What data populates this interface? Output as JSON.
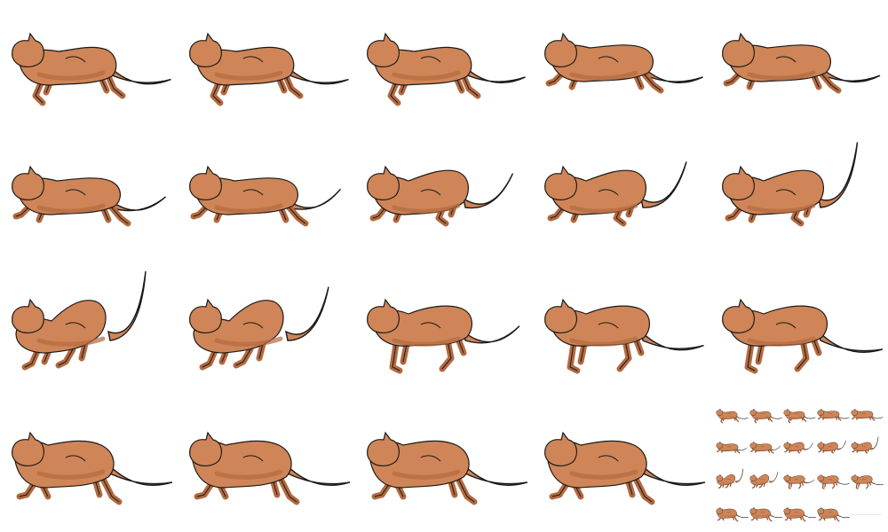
{
  "sprite_sheet": {
    "columns": 5,
    "rows": 4,
    "frame_count": 19,
    "colors": {
      "fur": "#cf8557",
      "fur_shadow": "#b46a40",
      "outline": "#1a1a1a",
      "background": "#ffffff"
    },
    "frames": [
      {
        "pose": "extended-low",
        "tail_lift": 0.05
      },
      {
        "pose": "extended-low",
        "tail_lift": 0.05
      },
      {
        "pose": "extended-low",
        "tail_lift": 0.08
      },
      {
        "pose": "stretched",
        "tail_lift": 0.08
      },
      {
        "pose": "stretched",
        "tail_lift": 0.1
      },
      {
        "pose": "stretched",
        "tail_lift": 0.25
      },
      {
        "pose": "stretched",
        "tail_lift": 0.35
      },
      {
        "pose": "gather",
        "tail_lift": 0.55
      },
      {
        "pose": "gather",
        "tail_lift": 0.7
      },
      {
        "pose": "gather",
        "tail_lift": 0.95
      },
      {
        "pose": "crouch",
        "tail_lift": 1.0
      },
      {
        "pose": "crouch",
        "tail_lift": 0.8
      },
      {
        "pose": "push",
        "tail_lift": 0.3
      },
      {
        "pose": "push",
        "tail_lift": 0.05
      },
      {
        "pose": "push",
        "tail_lift": 0.0
      },
      {
        "pose": "reach",
        "tail_lift": 0.0
      },
      {
        "pose": "reach",
        "tail_lift": 0.0
      },
      {
        "pose": "reach",
        "tail_lift": 0.0
      },
      {
        "pose": "reach",
        "tail_lift": 0.0
      }
    ],
    "preview": {
      "columns": 5,
      "rows": 4,
      "shows_all_frames": true
    }
  }
}
